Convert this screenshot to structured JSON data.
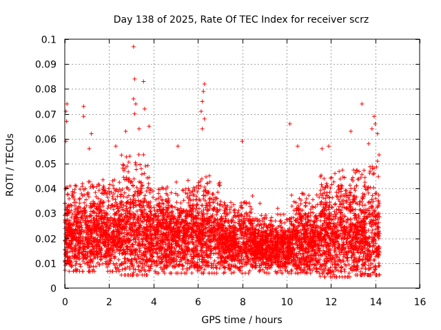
{
  "chart_data": {
    "type": "scatter",
    "title": "Day 138 of 2025, Rate Of TEC Index for receiver scrz",
    "xlabel": "GPS time / hours",
    "ylabel": "ROTI / TECUs",
    "xlim": [
      0,
      16
    ],
    "ylim": [
      0,
      0.1
    ],
    "xticks": [
      0,
      2,
      4,
      6,
      8,
      10,
      12,
      14,
      16
    ],
    "xtick_labels": [
      "0",
      "2",
      "4",
      "6",
      "8",
      "10",
      "12",
      "14",
      "16"
    ],
    "yticks": [
      0,
      0.01,
      0.02,
      0.03,
      0.04,
      0.05,
      0.06,
      0.07,
      0.08,
      0.09,
      0.1
    ],
    "ytick_labels": [
      "0",
      "0.01",
      "0.02",
      "0.03",
      "0.04",
      "0.05",
      "0.06",
      "0.07",
      "0.08",
      "0.09",
      "0.1"
    ],
    "grid": true,
    "marker": "+",
    "color": "#ff0000",
    "x_data_range": [
      0,
      14.2
    ],
    "bands": [
      {
        "x": [
          0.0,
          1.0
        ],
        "low": 0.009,
        "mid": 0.02,
        "high": 0.04
      },
      {
        "x": [
          1.0,
          2.5
        ],
        "low": 0.009,
        "mid": 0.021,
        "high": 0.042
      },
      {
        "x": [
          2.5,
          3.8
        ],
        "low": 0.007,
        "mid": 0.023,
        "high": 0.05
      },
      {
        "x": [
          3.8,
          5.5
        ],
        "low": 0.008,
        "mid": 0.02,
        "high": 0.04
      },
      {
        "x": [
          5.5,
          7.0
        ],
        "low": 0.008,
        "mid": 0.021,
        "high": 0.043
      },
      {
        "x": [
          7.0,
          8.5
        ],
        "low": 0.008,
        "mid": 0.018,
        "high": 0.035
      },
      {
        "x": [
          8.5,
          10.2
        ],
        "low": 0.008,
        "mid": 0.016,
        "high": 0.028
      },
      {
        "x": [
          10.2,
          11.5
        ],
        "low": 0.008,
        "mid": 0.018,
        "high": 0.038
      },
      {
        "x": [
          11.5,
          13.0
        ],
        "low": 0.006,
        "mid": 0.02,
        "high": 0.045
      },
      {
        "x": [
          13.0,
          14.2
        ],
        "low": 0.007,
        "mid": 0.02,
        "high": 0.05
      }
    ],
    "peaks": [
      {
        "x": 0.05,
        "y": 0.071
      },
      {
        "x": 0.1,
        "y": 0.074
      },
      {
        "x": 0.08,
        "y": 0.067
      },
      {
        "x": 0.05,
        "y": 0.059
      },
      {
        "x": 0.85,
        "y": 0.073
      },
      {
        "x": 0.85,
        "y": 0.069
      },
      {
        "x": 1.2,
        "y": 0.062
      },
      {
        "x": 1.1,
        "y": 0.056
      },
      {
        "x": 2.3,
        "y": 0.057
      },
      {
        "x": 2.75,
        "y": 0.063
      },
      {
        "x": 3.1,
        "y": 0.097
      },
      {
        "x": 3.15,
        "y": 0.084
      },
      {
        "x": 3.55,
        "y": 0.083
      },
      {
        "x": 3.1,
        "y": 0.076
      },
      {
        "x": 3.2,
        "y": 0.074
      },
      {
        "x": 3.15,
        "y": 0.07
      },
      {
        "x": 3.35,
        "y": 0.064
      },
      {
        "x": 3.6,
        "y": 0.072
      },
      {
        "x": 3.8,
        "y": 0.065
      },
      {
        "x": 5.1,
        "y": 0.057
      },
      {
        "x": 6.3,
        "y": 0.082
      },
      {
        "x": 6.25,
        "y": 0.079
      },
      {
        "x": 6.2,
        "y": 0.075
      },
      {
        "x": 6.15,
        "y": 0.071
      },
      {
        "x": 6.3,
        "y": 0.068
      },
      {
        "x": 6.2,
        "y": 0.064
      },
      {
        "x": 8.0,
        "y": 0.059
      },
      {
        "x": 10.15,
        "y": 0.066
      },
      {
        "x": 10.5,
        "y": 0.057
      },
      {
        "x": 11.9,
        "y": 0.057
      },
      {
        "x": 11.6,
        "y": 0.056
      },
      {
        "x": 13.4,
        "y": 0.074
      },
      {
        "x": 12.9,
        "y": 0.063
      },
      {
        "x": 13.95,
        "y": 0.069
      },
      {
        "x": 14.0,
        "y": 0.066
      },
      {
        "x": 13.85,
        "y": 0.064
      },
      {
        "x": 14.1,
        "y": 0.062
      },
      {
        "x": 13.7,
        "y": 0.058
      },
      {
        "x": 14.1,
        "y": 0.051
      },
      {
        "x": 8.8,
        "y": 0.034
      },
      {
        "x": 9.6,
        "y": 0.032
      }
    ]
  }
}
